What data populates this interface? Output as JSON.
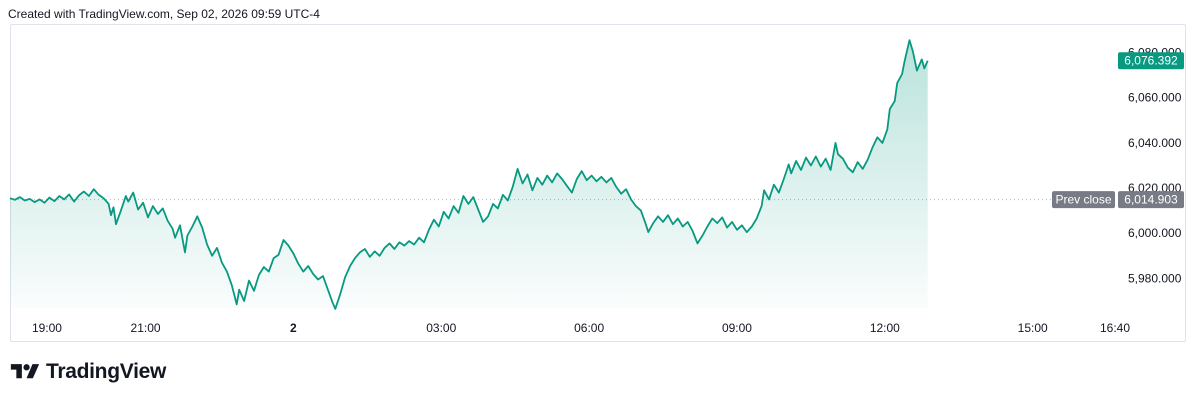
{
  "header": {
    "watermark": "Created with TradingView.com, Sep 02, 2026 09:59 UTC-4"
  },
  "brand": {
    "logo_text": "TradingView"
  },
  "colors": {
    "line": "#089981",
    "fill_top": "#089981",
    "price_badge": "#089981",
    "prev_close_badge": "#787b86",
    "prev_close_line": "#b2b5be"
  },
  "chart_data": {
    "type": "area",
    "x_tick_labels": [
      "19:00",
      "21:00",
      "2",
      "03:00",
      "06:00",
      "09:00",
      "12:00",
      "15:00",
      "16:40"
    ],
    "y_tick_labels": [
      "5,980.000",
      "6,000.000",
      "6,020.000",
      "6,040.000",
      "6,060.000",
      "6,080.000"
    ],
    "y_ticks": [
      5980,
      6000,
      6020,
      6040,
      6060,
      6080
    ],
    "ylim": [
      5966,
      6090
    ],
    "x_unit": "hours since 18:15",
    "xlim": [
      0,
      22.42
    ],
    "last_price": 6076.392,
    "last_price_label": "6,076.392",
    "prev_close": 6014.903,
    "prev_close_value_label": "6,014.903",
    "prev_close_label": "Prev close",
    "series": [
      {
        "points": [
          [
            0.0,
            6015.5
          ],
          [
            0.1,
            6014.8
          ],
          [
            0.2,
            6016.0
          ],
          [
            0.3,
            6014.5
          ],
          [
            0.4,
            6015.2
          ],
          [
            0.5,
            6013.8
          ],
          [
            0.6,
            6015.0
          ],
          [
            0.7,
            6013.5
          ],
          [
            0.8,
            6015.8
          ],
          [
            0.9,
            6014.2
          ],
          [
            1.0,
            6016.5
          ],
          [
            1.1,
            6015.0
          ],
          [
            1.2,
            6017.2
          ],
          [
            1.3,
            6014.0
          ],
          [
            1.4,
            6016.8
          ],
          [
            1.5,
            6018.5
          ],
          [
            1.6,
            6016.5
          ],
          [
            1.7,
            6019.5
          ],
          [
            1.8,
            6017.0
          ],
          [
            1.9,
            6015.5
          ],
          [
            2.0,
            6013.0
          ],
          [
            2.05,
            6008.0
          ],
          [
            2.1,
            6011.5
          ],
          [
            2.15,
            6004.0
          ],
          [
            2.25,
            6010.0
          ],
          [
            2.35,
            6016.5
          ],
          [
            2.4,
            6014.0
          ],
          [
            2.5,
            6018.0
          ],
          [
            2.6,
            6010.5
          ],
          [
            2.7,
            6013.5
          ],
          [
            2.8,
            6007.0
          ],
          [
            2.9,
            6012.0
          ],
          [
            3.0,
            6008.5
          ],
          [
            3.1,
            6011.0
          ],
          [
            3.2,
            6005.5
          ],
          [
            3.3,
            6002.0
          ],
          [
            3.35,
            5998.0
          ],
          [
            3.45,
            6003.5
          ],
          [
            3.55,
            5991.5
          ],
          [
            3.6,
            5999.0
          ],
          [
            3.7,
            6003.0
          ],
          [
            3.8,
            6007.5
          ],
          [
            3.9,
            6002.5
          ],
          [
            4.0,
            5995.0
          ],
          [
            4.1,
            5990.0
          ],
          [
            4.2,
            5993.5
          ],
          [
            4.3,
            5987.0
          ],
          [
            4.4,
            5983.0
          ],
          [
            4.5,
            5977.0
          ],
          [
            4.6,
            5968.5
          ],
          [
            4.65,
            5975.0
          ],
          [
            4.75,
            5970.0
          ],
          [
            4.85,
            5979.0
          ],
          [
            4.95,
            5974.5
          ],
          [
            5.05,
            5981.5
          ],
          [
            5.15,
            5985.0
          ],
          [
            5.25,
            5983.0
          ],
          [
            5.35,
            5989.0
          ],
          [
            5.45,
            5990.5
          ],
          [
            5.55,
            5997.0
          ],
          [
            5.65,
            5994.5
          ],
          [
            5.75,
            5991.0
          ],
          [
            5.85,
            5986.5
          ],
          [
            5.95,
            5983.0
          ],
          [
            6.05,
            5985.5
          ],
          [
            6.15,
            5982.0
          ],
          [
            6.25,
            5979.5
          ],
          [
            6.35,
            5981.0
          ],
          [
            6.45,
            5975.0
          ],
          [
            6.55,
            5969.0
          ],
          [
            6.6,
            5966.5
          ],
          [
            6.7,
            5973.0
          ],
          [
            6.8,
            5980.5
          ],
          [
            6.9,
            5985.5
          ],
          [
            7.0,
            5989.0
          ],
          [
            7.1,
            5991.5
          ],
          [
            7.2,
            5993.0
          ],
          [
            7.3,
            5989.5
          ],
          [
            7.4,
            5992.0
          ],
          [
            7.5,
            5990.0
          ],
          [
            7.6,
            5993.5
          ],
          [
            7.7,
            5995.5
          ],
          [
            7.8,
            5993.0
          ],
          [
            7.9,
            5996.0
          ],
          [
            8.0,
            5994.5
          ],
          [
            8.1,
            5996.5
          ],
          [
            8.2,
            5995.0
          ],
          [
            8.3,
            5998.0
          ],
          [
            8.4,
            5996.0
          ],
          [
            8.5,
            6001.5
          ],
          [
            8.6,
            6006.0
          ],
          [
            8.7,
            6003.0
          ],
          [
            8.8,
            6009.5
          ],
          [
            8.9,
            6006.5
          ],
          [
            9.0,
            6012.0
          ],
          [
            9.1,
            6009.0
          ],
          [
            9.2,
            6016.5
          ],
          [
            9.3,
            6013.0
          ],
          [
            9.4,
            6016.0
          ],
          [
            9.5,
            6010.5
          ],
          [
            9.6,
            6005.0
          ],
          [
            9.7,
            6007.5
          ],
          [
            9.8,
            6013.0
          ],
          [
            9.9,
            6011.0
          ],
          [
            10.0,
            6017.0
          ],
          [
            10.1,
            6014.5
          ],
          [
            10.2,
            6020.5
          ],
          [
            10.3,
            6028.5
          ],
          [
            10.4,
            6022.0
          ],
          [
            10.5,
            6026.0
          ],
          [
            10.6,
            6019.0
          ],
          [
            10.7,
            6024.5
          ],
          [
            10.8,
            6021.5
          ],
          [
            10.9,
            6025.5
          ],
          [
            11.0,
            6022.5
          ],
          [
            11.1,
            6026.5
          ],
          [
            11.2,
            6024.0
          ],
          [
            11.3,
            6021.0
          ],
          [
            11.4,
            6018.0
          ],
          [
            11.5,
            6024.0
          ],
          [
            11.6,
            6027.5
          ],
          [
            11.7,
            6023.5
          ],
          [
            11.8,
            6025.5
          ],
          [
            11.9,
            6023.0
          ],
          [
            12.0,
            6025.0
          ],
          [
            12.1,
            6022.5
          ],
          [
            12.2,
            6024.5
          ],
          [
            12.3,
            6020.5
          ],
          [
            12.4,
            6017.5
          ],
          [
            12.5,
            6019.5
          ],
          [
            12.6,
            6015.0
          ],
          [
            12.7,
            6012.0
          ],
          [
            12.8,
            6010.0
          ],
          [
            12.9,
            6004.0
          ],
          [
            12.95,
            6000.5
          ],
          [
            13.05,
            6004.5
          ],
          [
            13.15,
            6007.5
          ],
          [
            13.25,
            6005.0
          ],
          [
            13.35,
            6008.0
          ],
          [
            13.45,
            6004.0
          ],
          [
            13.55,
            6006.5
          ],
          [
            13.65,
            6003.0
          ],
          [
            13.75,
            6005.0
          ],
          [
            13.85,
            6001.0
          ],
          [
            13.95,
            5995.5
          ],
          [
            14.05,
            5999.0
          ],
          [
            14.15,
            6003.0
          ],
          [
            14.25,
            6006.5
          ],
          [
            14.35,
            6004.5
          ],
          [
            14.45,
            6007.0
          ],
          [
            14.55,
            6002.5
          ],
          [
            14.65,
            6005.0
          ],
          [
            14.75,
            6001.5
          ],
          [
            14.85,
            6003.5
          ],
          [
            14.95,
            6000.5
          ],
          [
            15.05,
            6003.0
          ],
          [
            15.15,
            6006.5
          ],
          [
            15.25,
            6012.0
          ],
          [
            15.3,
            6019.0
          ],
          [
            15.4,
            6015.0
          ],
          [
            15.5,
            6021.5
          ],
          [
            15.6,
            6018.0
          ],
          [
            15.7,
            6024.0
          ],
          [
            15.8,
            6030.5
          ],
          [
            15.85,
            6026.5
          ],
          [
            15.95,
            6032.0
          ],
          [
            16.05,
            6028.0
          ],
          [
            16.15,
            6033.5
          ],
          [
            16.25,
            6030.0
          ],
          [
            16.35,
            6034.0
          ],
          [
            16.45,
            6029.5
          ],
          [
            16.55,
            6033.0
          ],
          [
            16.65,
            6028.0
          ],
          [
            16.75,
            6040.0
          ],
          [
            16.8,
            6035.0
          ],
          [
            16.9,
            6033.0
          ],
          [
            17.0,
            6029.0
          ],
          [
            17.1,
            6027.0
          ],
          [
            17.2,
            6031.5
          ],
          [
            17.3,
            6028.5
          ],
          [
            17.4,
            6032.5
          ],
          [
            17.5,
            6038.0
          ],
          [
            17.6,
            6042.5
          ],
          [
            17.7,
            6040.0
          ],
          [
            17.8,
            6046.0
          ],
          [
            17.85,
            6055.0
          ],
          [
            17.95,
            6058.5
          ],
          [
            18.0,
            6066.5
          ],
          [
            18.1,
            6070.5
          ],
          [
            18.15,
            6076.0
          ],
          [
            18.25,
            6085.5
          ],
          [
            18.32,
            6080.5
          ],
          [
            18.4,
            6072.0
          ],
          [
            18.5,
            6077.0
          ],
          [
            18.55,
            6073.0
          ],
          [
            18.62,
            6076.4
          ]
        ]
      }
    ]
  }
}
